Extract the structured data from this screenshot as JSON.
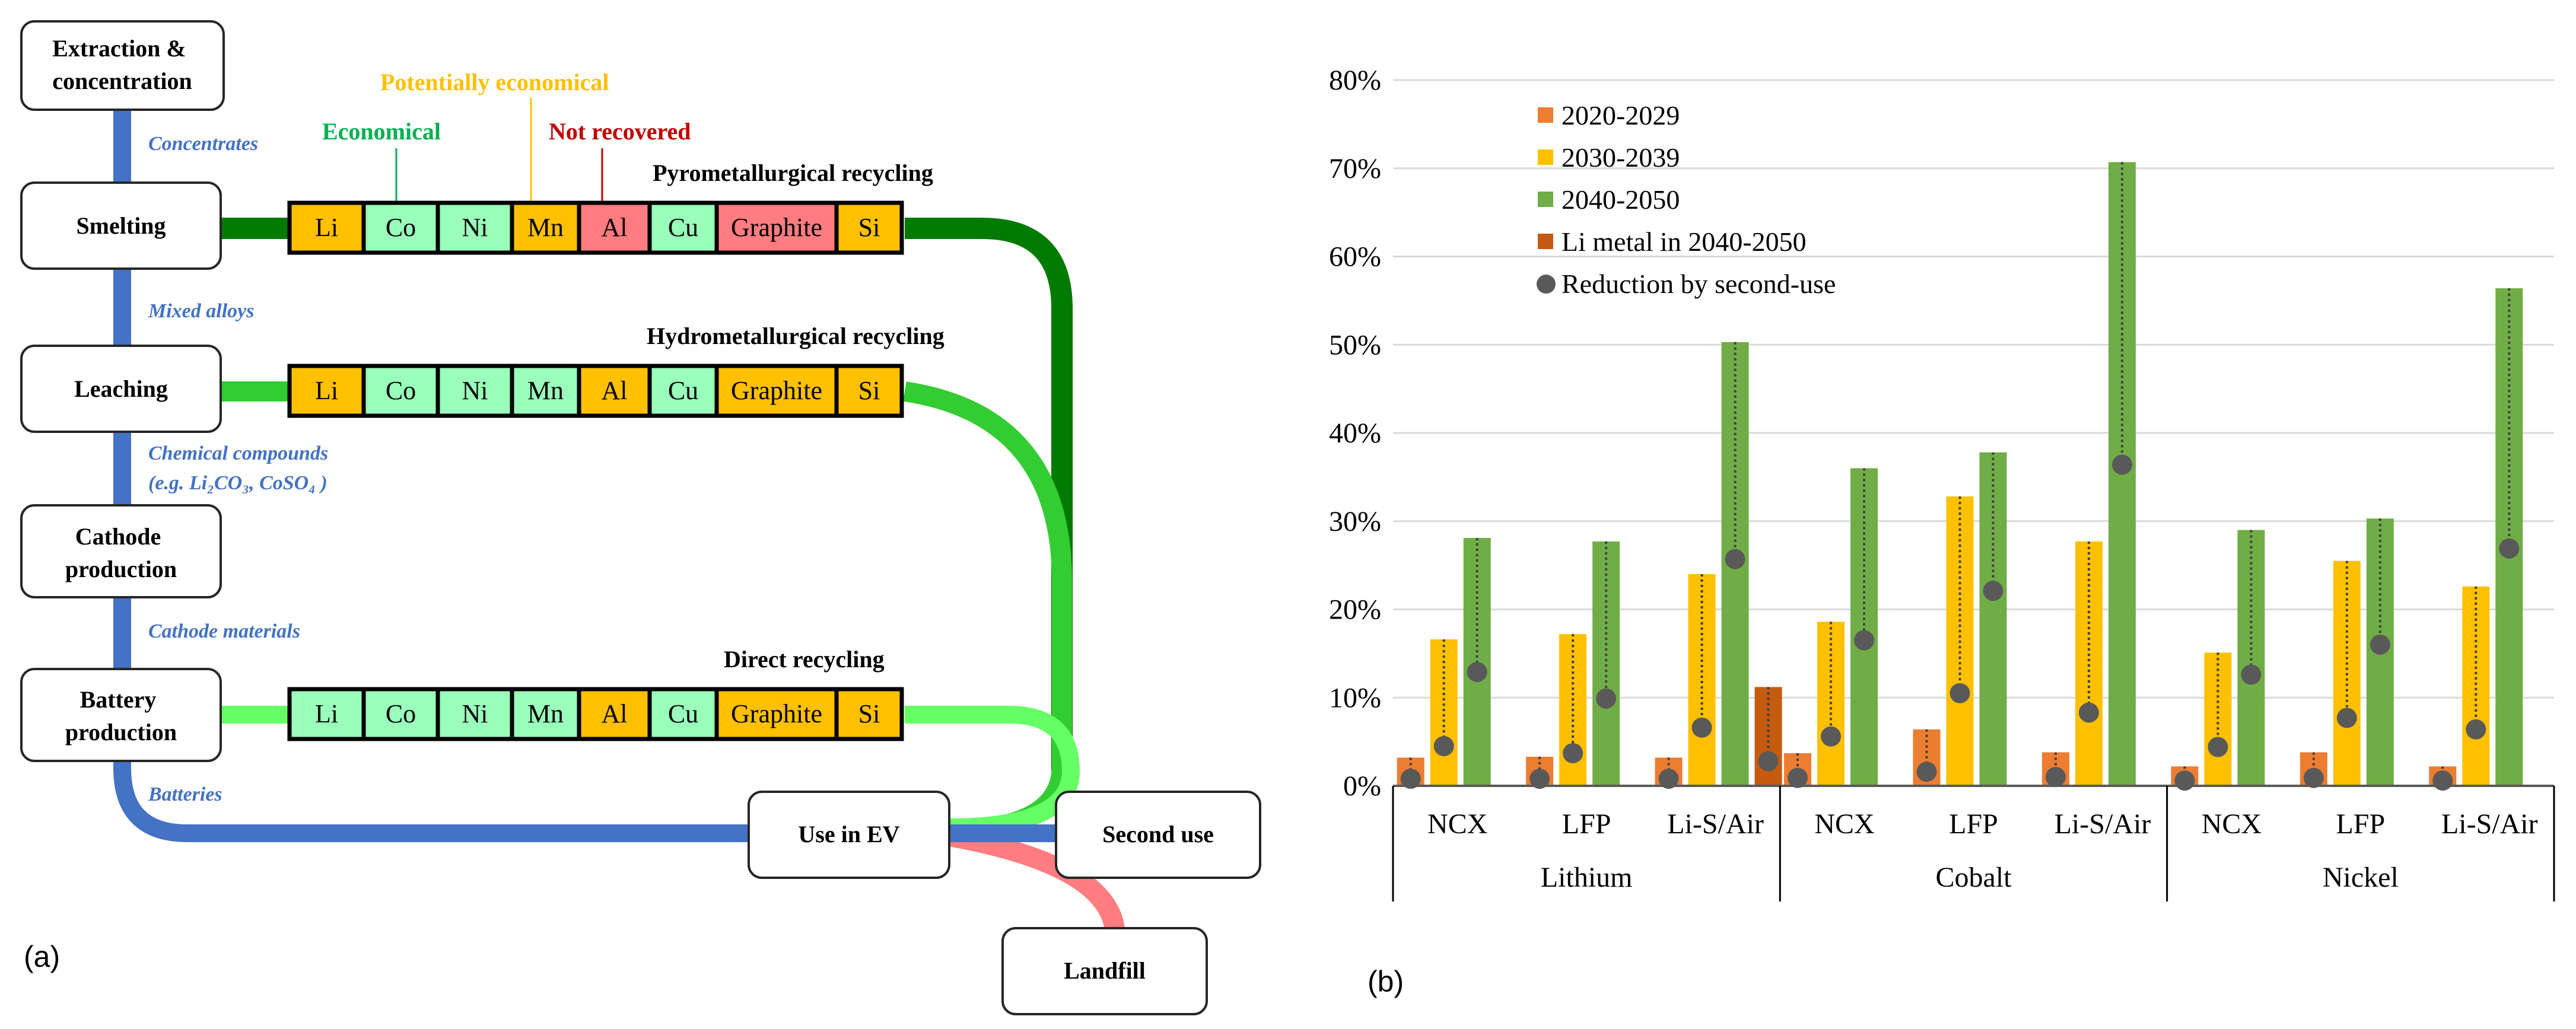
{
  "panel_a": {
    "panel_label": "(a)",
    "stages": {
      "extraction": [
        "Extraction &",
        "concentration"
      ],
      "smelting": [
        "Smelting"
      ],
      "leaching": [
        "Leaching"
      ],
      "cathode": [
        "Cathode",
        "production"
      ],
      "battery": [
        "Battery",
        "production"
      ],
      "use_ev": [
        "Use in EV"
      ],
      "second_use": [
        "Second use"
      ],
      "landfill": [
        "Landfill"
      ]
    },
    "flows": {
      "concentrates": "Concentrates",
      "mixed_alloys": "Mixed alloys",
      "chemical_compounds": "Chemical compounds",
      "chemical_examples": "(e.g. Li₂CO₃, CoSO₄ )",
      "cathode_materials": "Cathode materials",
      "batteries": "Batteries"
    },
    "legend": {
      "economical": "Economical",
      "potentially_economical": "Potentially economical",
      "not_recovered": "Not recovered"
    },
    "recycling_routes": [
      {
        "title": "Pyrometallurgical recycling",
        "materials": [
          {
            "name": "Li",
            "status": "potential"
          },
          {
            "name": "Co",
            "status": "economical"
          },
          {
            "name": "Ni",
            "status": "economical"
          },
          {
            "name": "Mn",
            "status": "potential"
          },
          {
            "name": "Al",
            "status": "not_recovered"
          },
          {
            "name": "Cu",
            "status": "economical"
          },
          {
            "name": "Graphite",
            "status": "not_recovered"
          },
          {
            "name": "Si",
            "status": "potential"
          }
        ]
      },
      {
        "title": "Hydrometallurgical recycling",
        "materials": [
          {
            "name": "Li",
            "status": "potential"
          },
          {
            "name": "Co",
            "status": "economical"
          },
          {
            "name": "Ni",
            "status": "economical"
          },
          {
            "name": "Mn",
            "status": "economical"
          },
          {
            "name": "Al",
            "status": "potential"
          },
          {
            "name": "Cu",
            "status": "economical"
          },
          {
            "name": "Graphite",
            "status": "potential"
          },
          {
            "name": "Si",
            "status": "potential"
          }
        ]
      },
      {
        "title": "Direct recycling",
        "materials": [
          {
            "name": "Li",
            "status": "economical"
          },
          {
            "name": "Co",
            "status": "economical"
          },
          {
            "name": "Ni",
            "status": "economical"
          },
          {
            "name": "Mn",
            "status": "economical"
          },
          {
            "name": "Al",
            "status": "potential"
          },
          {
            "name": "Cu",
            "status": "economical"
          },
          {
            "name": "Graphite",
            "status": "potential"
          },
          {
            "name": "Si",
            "status": "potential"
          }
        ]
      }
    ],
    "colors": {
      "economical": "#99ffbb",
      "potential": "#ffc000",
      "not_recovered": "#ff7c80",
      "economical_text": "#00b050",
      "potential_text": "#ffc000",
      "not_recovered_text": "#c00000",
      "flow_blue": "#4472c4",
      "pyro_line": "#007a00",
      "hydro_line": "#33cc33",
      "direct_line": "#66ff66",
      "landfill_line": "#ff7c80"
    }
  },
  "panel_b": {
    "panel_label": "(b)",
    "chart_data": {
      "type": "bar",
      "yaxis_ticks": [
        "0%",
        "10%",
        "20%",
        "30%",
        "40%",
        "50%",
        "60%",
        "70%",
        "80%"
      ],
      "ylim": [
        0,
        80
      ],
      "groups": [
        "Lithium",
        "Cobalt",
        "Nickel"
      ],
      "categories": [
        "NCX",
        "LFP",
        "Li-S/Air",
        "NCX",
        "LFP",
        "Li-S/Air",
        "NCX",
        "LFP",
        "Li-S/Air"
      ],
      "series": [
        {
          "name": "2020-2029",
          "color": "#ed7d31",
          "values": [
            3.2,
            3.3,
            3.2,
            3.7,
            6.4,
            3.8,
            2.2,
            3.8,
            2.2
          ]
        },
        {
          "name": "2030-2039",
          "color": "#ffc000",
          "values": [
            16.6,
            17.2,
            24.0,
            18.6,
            32.8,
            27.7,
            15.1,
            25.5,
            22.6
          ]
        },
        {
          "name": "2040-2050",
          "color": "#70ad47",
          "values": [
            28.1,
            27.7,
            50.3,
            36.0,
            37.8,
            70.7,
            29.0,
            30.3,
            56.4
          ]
        },
        {
          "name": "Li metal in 2040-2050",
          "color": "#c55a11",
          "values": [
            null,
            null,
            11.2,
            null,
            null,
            null,
            null,
            null,
            null
          ]
        }
      ],
      "second_use_reduction": {
        "name": "Reduction by second-use",
        "color": "#595959",
        "values_2020_2029": [
          0.8,
          0.8,
          0.8,
          0.9,
          1.6,
          1.0,
          0.6,
          0.9,
          0.6
        ],
        "values_2030_2039": [
          4.5,
          3.7,
          6.6,
          5.6,
          10.5,
          8.3,
          4.4,
          7.7,
          6.4
        ],
        "values_2040_2050": [
          12.9,
          9.9,
          25.7,
          16.5,
          22.1,
          36.4,
          12.6,
          16.0,
          26.9
        ],
        "values_li_metal": [
          null,
          null,
          2.8,
          null,
          null,
          null,
          null,
          null,
          null
        ]
      }
    }
  }
}
